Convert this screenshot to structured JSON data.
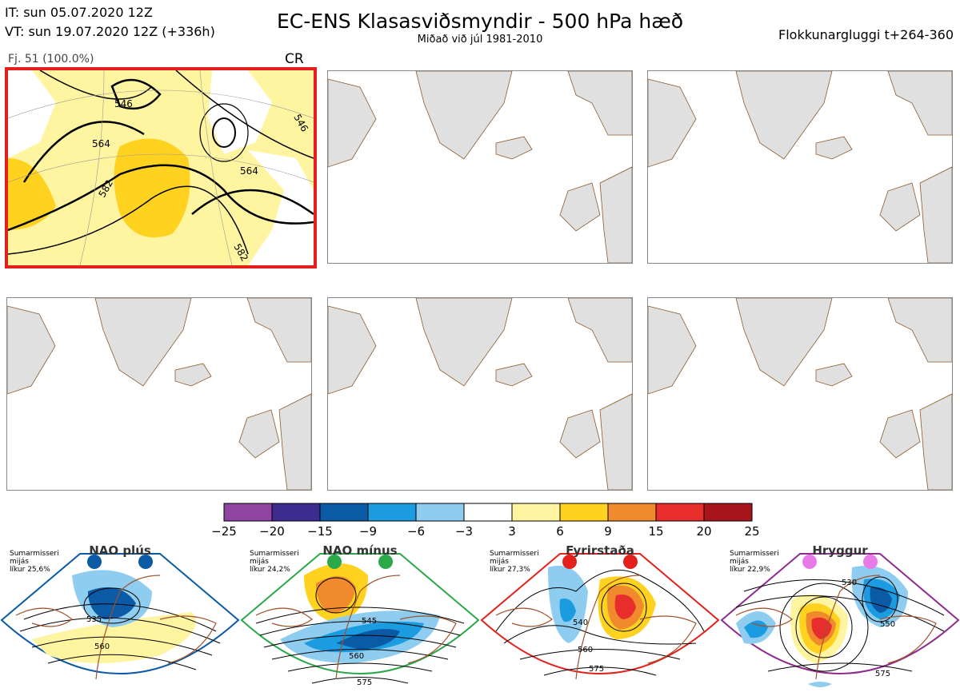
{
  "header": {
    "it_line": "IT: sun 05.07.2020 12Z",
    "vt_line": "VT: sun 19.07.2020 12Z  (+336h)",
    "title": "EC-ENS Klasasviðsmyndir - 500 hPa hæð",
    "subtitle": "Miðað við júl 1981-2010",
    "window": "Flokkunargluggi t+264-360"
  },
  "cluster": {
    "label": "Fj. 51 (100.0%)",
    "regime_code": "CR",
    "contour_labels": [
      "546",
      "564",
      "582",
      "564",
      "546",
      "582"
    ]
  },
  "colorbar": {
    "ticks": [
      "−25",
      "−20",
      "−15",
      "−9",
      "−6",
      "−3",
      "3",
      "6",
      "9",
      "15",
      "20",
      "25"
    ],
    "colors": [
      "#8e44a0",
      "#3d2c8f",
      "#0b5aa6",
      "#1b9be0",
      "#8fcdf0",
      "#ffffff",
      "#fff4a0",
      "#ffd21f",
      "#f08a2c",
      "#e82d2d",
      "#a8141b"
    ]
  },
  "regimes": [
    {
      "name": "NAO plús",
      "season": "Sumarmisseri",
      "mean": "mijás",
      "prob": "líkur 25,6%",
      "color": "#0b5aa6",
      "contours": [
        "535",
        "560"
      ]
    },
    {
      "name": "NAO mínus",
      "season": "Sumarmisseri",
      "mean": "mijás",
      "prob": "líkur 24,2%",
      "color": "#2aa84a",
      "contours": [
        "545",
        "560",
        "575"
      ]
    },
    {
      "name": "Fyrirstaða",
      "season": "Sumarmisseri",
      "mean": "mijás",
      "prob": "líkur 27,3%",
      "color": "#e3201b",
      "contours": [
        "540",
        "560",
        "575"
      ]
    },
    {
      "name": "Hryggur",
      "season": "Sumarmisseri",
      "mean": "mijás",
      "prob": "líkur 22,9%",
      "color": "#8e2b8e",
      "contours": [
        "530",
        "550",
        "575"
      ]
    }
  ]
}
